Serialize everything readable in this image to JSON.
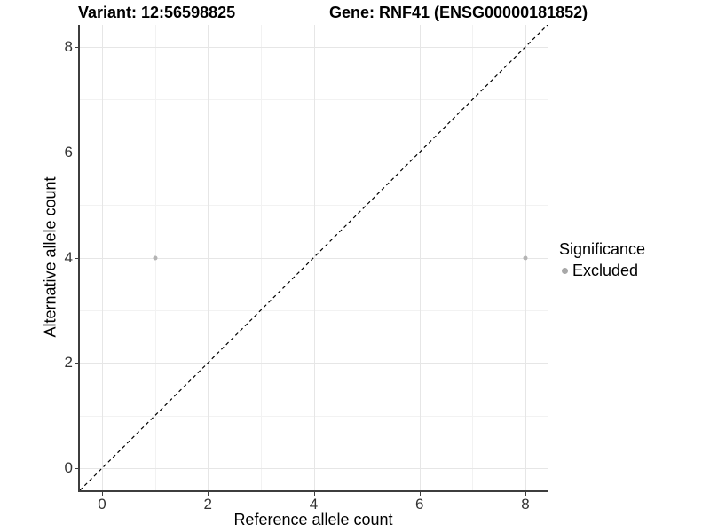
{
  "chart_data": {
    "type": "scatter",
    "title_left": "Variant: 12:56598825",
    "title_right": "Gene: RNF41 (ENSG00000181852)",
    "xlabel": "Reference allele count",
    "ylabel": "Alternative allele count",
    "xlim": [
      -0.42,
      8.42
    ],
    "ylim": [
      -0.42,
      8.42
    ],
    "x_major_ticks": [
      0,
      2,
      4,
      6,
      8
    ],
    "y_major_ticks": [
      0,
      2,
      4,
      6,
      8
    ],
    "x_minor_ticks": [
      1,
      3,
      5,
      7
    ],
    "y_minor_ticks": [
      1,
      3,
      5,
      7
    ],
    "grid": true,
    "series": [
      {
        "name": "Excluded",
        "color": "#b4b4b4",
        "points": [
          {
            "x": 1,
            "y": 4
          },
          {
            "x": 8,
            "y": 4
          }
        ]
      }
    ],
    "reference_line": {
      "type": "identity",
      "style": "dashed",
      "color": "#000000"
    },
    "legend": {
      "title": "Significance",
      "position": "right",
      "entries": [
        {
          "label": "Excluded",
          "color": "#a8a8a8"
        }
      ]
    },
    "colors": {
      "grid_major": "#e6e6e6",
      "grid_minor": "#f2f2f2",
      "axis": "#3d3d3d",
      "tick_label": "#333333"
    }
  }
}
